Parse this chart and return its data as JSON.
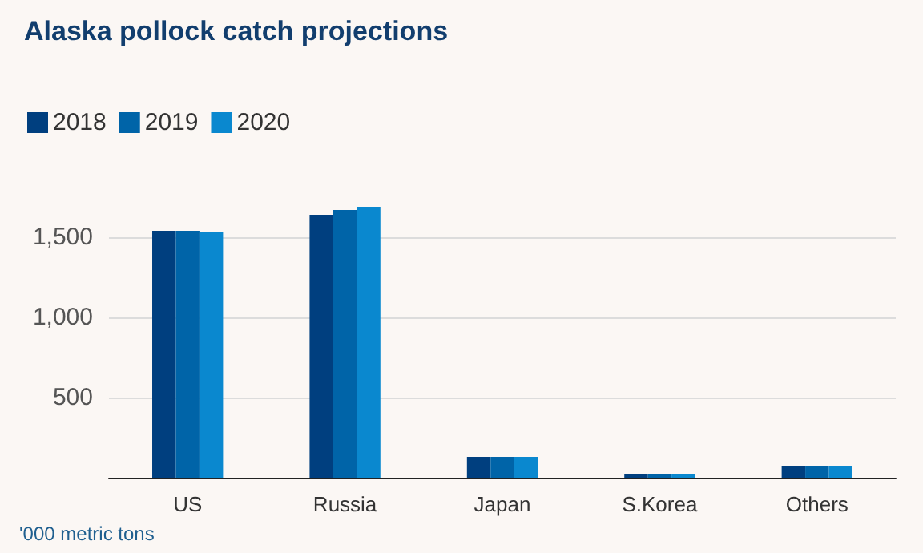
{
  "chart_data": {
    "type": "bar",
    "title": "Alaska pollock catch projections",
    "categories": [
      "US",
      "Russia",
      "Japan",
      "S.Korea",
      "Others"
    ],
    "series": [
      {
        "name": "2018",
        "color": "#003f7f",
        "values": [
          1540,
          1640,
          130,
          20,
          70
        ]
      },
      {
        "name": "2019",
        "color": "#0064a8",
        "values": [
          1540,
          1670,
          130,
          20,
          70
        ]
      },
      {
        "name": "2020",
        "color": "#0a88cf",
        "values": [
          1530,
          1690,
          130,
          20,
          70
        ]
      }
    ],
    "ylim": [
      0,
      1690
    ],
    "yticks": [
      500,
      {
        "value": 1000,
        "label": "1,000"
      },
      {
        "value": 1500,
        "label": "1,500"
      }
    ],
    "grid": "y",
    "legend": "top left",
    "annotations": [
      "'000 metric tons"
    ]
  }
}
